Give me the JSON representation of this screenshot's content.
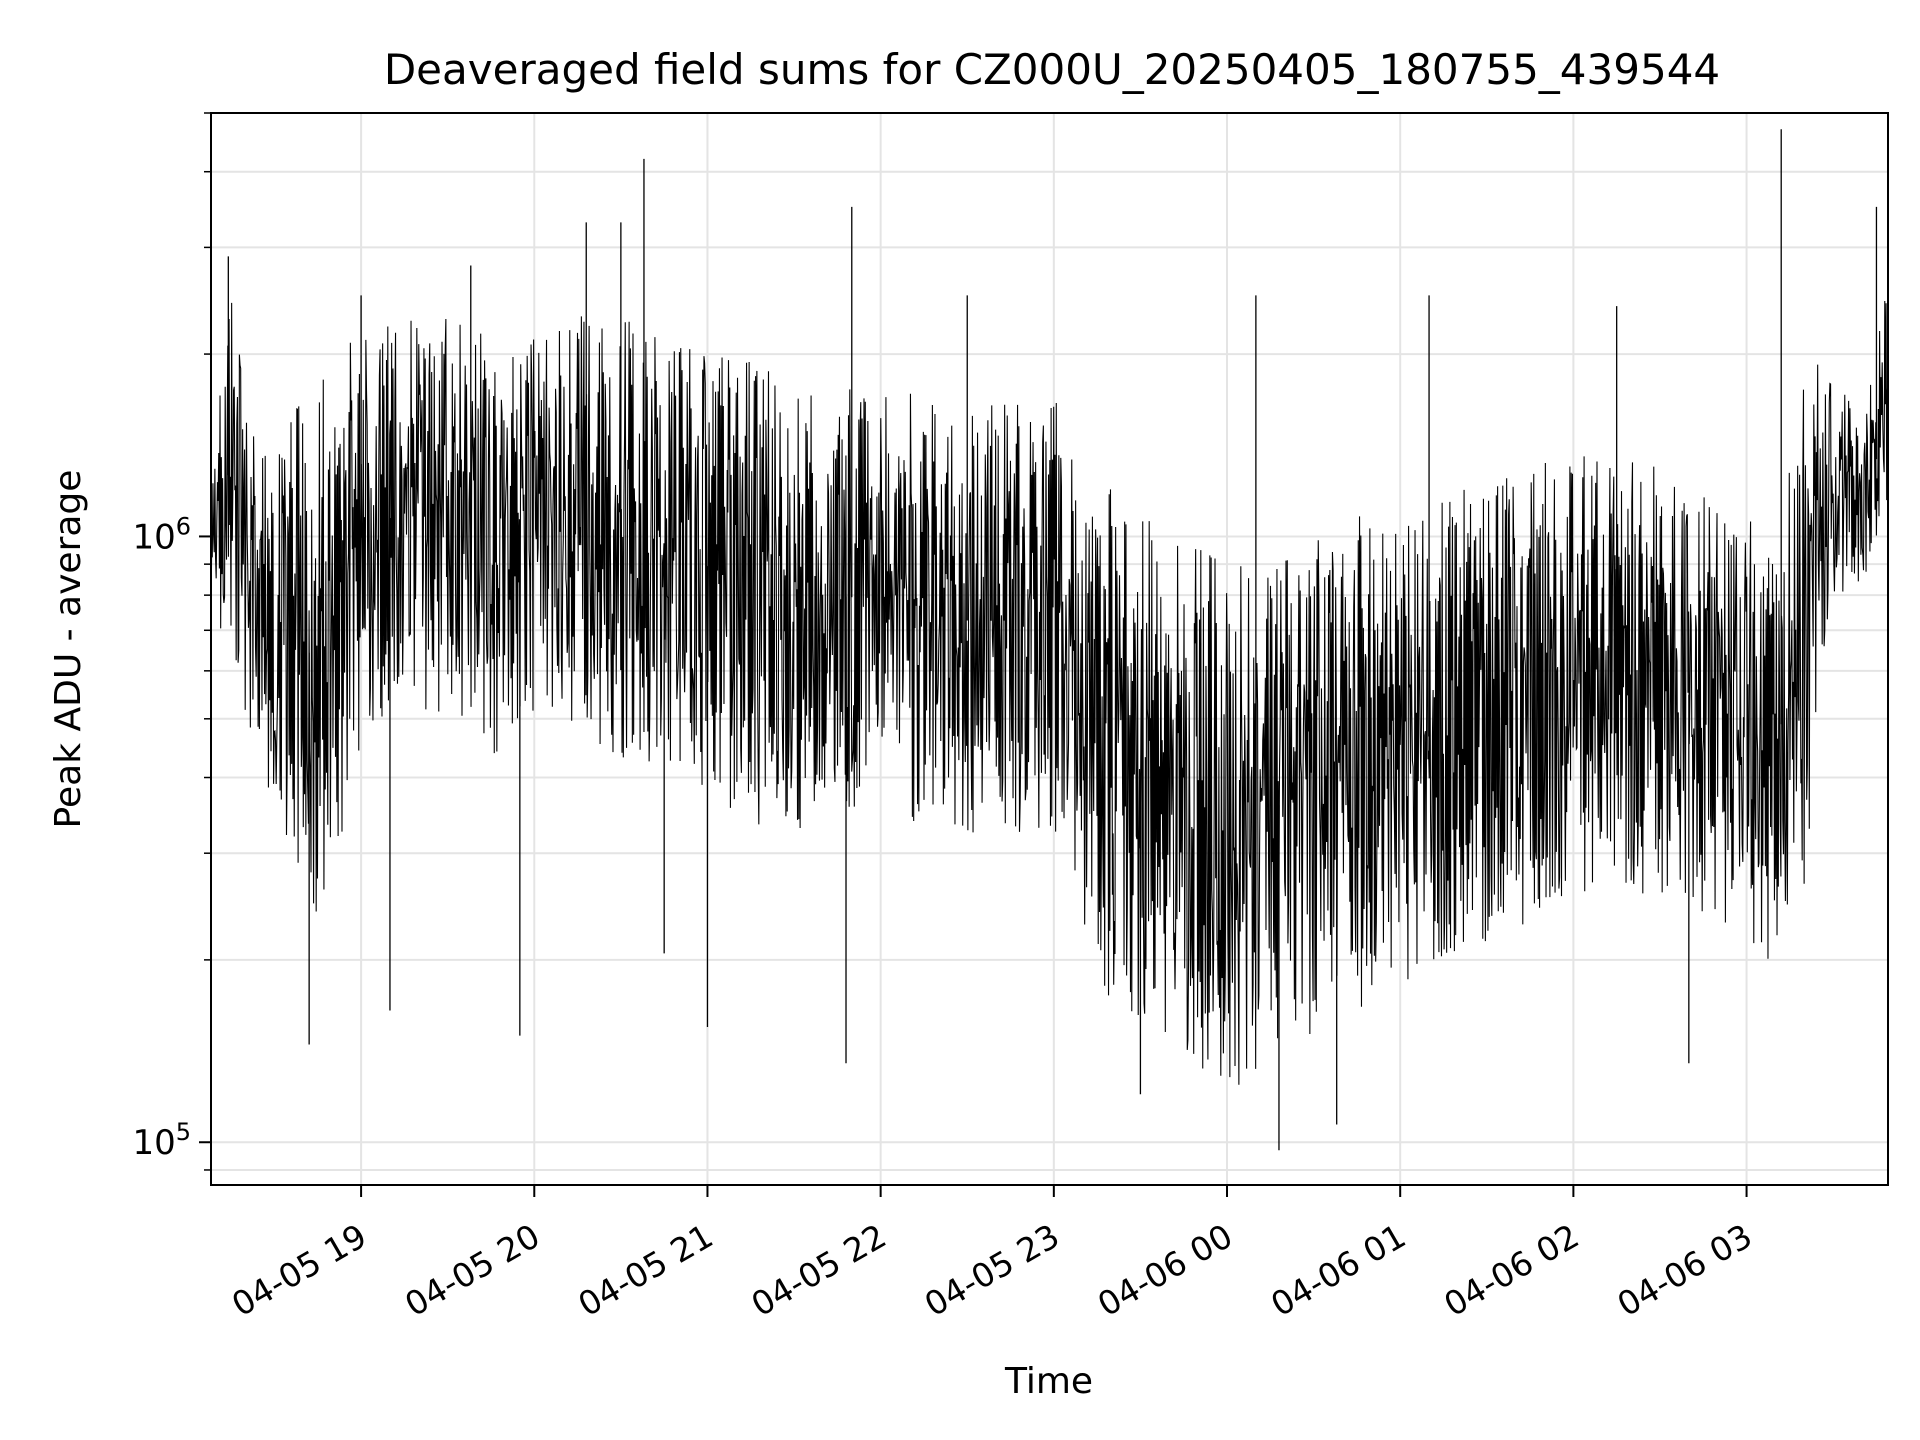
{
  "chart_data": {
    "type": "line",
    "title": "Deaveraged field sums for CZ000U_20250405_180755_439544",
    "xlabel": "Time",
    "ylabel": "Peak ADU - average",
    "yscale": "log",
    "ylim": [
      85000,
      5000000
    ],
    "xlim": [
      "2025-04-05 18:08",
      "2025-04-06 03:49"
    ],
    "grid": true,
    "line_color": "#000000",
    "x_ticks": [
      {
        "t": "2025-04-05 19:00",
        "label": "04-05 19"
      },
      {
        "t": "2025-04-05 20:00",
        "label": "04-05 20"
      },
      {
        "t": "2025-04-05 21:00",
        "label": "04-05 21"
      },
      {
        "t": "2025-04-05 22:00",
        "label": "04-05 22"
      },
      {
        "t": "2025-04-05 23:00",
        "label": "04-05 23"
      },
      {
        "t": "2025-04-06 00:00",
        "label": "04-06 00"
      },
      {
        "t": "2025-04-06 01:00",
        "label": "04-06 01"
      },
      {
        "t": "2025-04-06 02:00",
        "label": "04-06 02"
      },
      {
        "t": "2025-04-06 03:00",
        "label": "04-06 03"
      }
    ],
    "y_ticks": [
      {
        "value": 100000,
        "base": "10",
        "exp": "5"
      },
      {
        "value": 1000000,
        "base": "10",
        "exp": "6"
      }
    ],
    "series": [
      {
        "x": [
          "2025-04-05 18:08",
          "2025-04-05 18:15",
          "2025-04-05 18:20",
          "2025-04-05 18:25",
          "2025-04-05 18:30",
          "2025-04-05 18:35",
          "2025-04-05 18:40",
          "2025-04-05 18:45",
          "2025-04-05 18:50",
          "2025-04-05 18:55",
          "2025-04-05 19:00",
          "2025-04-05 19:10",
          "2025-04-05 19:20",
          "2025-04-05 19:30",
          "2025-04-05 19:40",
          "2025-04-05 19:50",
          "2025-04-05 20:00",
          "2025-04-05 20:10",
          "2025-04-05 20:20",
          "2025-04-05 20:30",
          "2025-04-05 20:40",
          "2025-04-05 20:50",
          "2025-04-05 21:00",
          "2025-04-05 21:10",
          "2025-04-05 21:20",
          "2025-04-05 21:30",
          "2025-04-05 21:40",
          "2025-04-05 21:50",
          "2025-04-05 22:00",
          "2025-04-05 22:10",
          "2025-04-05 22:20",
          "2025-04-05 22:30",
          "2025-04-05 22:40",
          "2025-04-05 22:50",
          "2025-04-05 23:00",
          "2025-04-05 23:10",
          "2025-04-05 23:20",
          "2025-04-05 23:30",
          "2025-04-05 23:40",
          "2025-04-05 23:50",
          "2025-04-06 00:00",
          "2025-04-06 00:10",
          "2025-04-06 00:20",
          "2025-04-06 00:30",
          "2025-04-06 00:40",
          "2025-04-06 00:50",
          "2025-04-06 01:00",
          "2025-04-06 01:10",
          "2025-04-06 01:20",
          "2025-04-06 01:30",
          "2025-04-06 01:40",
          "2025-04-06 01:50",
          "2025-04-06 02:00",
          "2025-04-06 02:10",
          "2025-04-06 02:20",
          "2025-04-06 02:30",
          "2025-04-06 02:40",
          "2025-04-06 02:50",
          "2025-04-06 03:00",
          "2025-04-06 03:05",
          "2025-04-06 03:10",
          "2025-04-06 03:15",
          "2025-04-06 03:20",
          "2025-04-06 03:25",
          "2025-04-06 03:30",
          "2025-04-06 03:35",
          "2025-04-06 03:40",
          "2025-04-06 03:45",
          "2025-04-06 03:49"
        ],
        "y_low": [
          600000,
          650000,
          500000,
          380000,
          350000,
          300000,
          250000,
          220000,
          280000,
          350000,
          450000,
          500000,
          520000,
          500000,
          450000,
          420000,
          500000,
          480000,
          450000,
          430000,
          420000,
          400000,
          380000,
          350000,
          330000,
          320000,
          340000,
          350000,
          360000,
          340000,
          330000,
          320000,
          330000,
          320000,
          310000,
          200000,
          170000,
          150000,
          140000,
          130000,
          120000,
          130000,
          140000,
          150000,
          160000,
          170000,
          180000,
          190000,
          200000,
          210000,
          220000,
          230000,
          240000,
          250000,
          260000,
          250000,
          240000,
          230000,
          210000,
          200000,
          200000,
          210000,
          220000,
          600000,
          700000,
          800000,
          850000,
          900000,
          1000000
        ],
        "y_high": [
          1200000,
          2800000,
          1600000,
          1400000,
          1500000,
          1600000,
          1700000,
          1800000,
          2000000,
          2100000,
          2200000,
          2300000,
          2400000,
          2300000,
          2200000,
          2100000,
          2200000,
          2300000,
          2400000,
          2300000,
          2200000,
          2100000,
          2100000,
          2000000,
          2000000,
          1900000,
          1900000,
          1800000,
          1800000,
          1750000,
          1700000,
          1650000,
          1650000,
          1700000,
          1700000,
          1300000,
          1200000,
          1100000,
          1000000,
          1000000,
          950000,
          900000,
          950000,
          1000000,
          1050000,
          1100000,
          1100000,
          1150000,
          1200000,
          1250000,
          1300000,
          1350000,
          1400000,
          1400000,
          1350000,
          1300000,
          1250000,
          1200000,
          1100000,
          1000000,
          1100000,
          1300000,
          1800000,
          2000000,
          1900000,
          1700000,
          1600000,
          2000000,
          3000000
        ],
        "spikes": [
          {
            "t": "2025-04-05 18:14",
            "y": 2900000
          },
          {
            "t": "2025-04-05 18:42",
            "y": 145000
          },
          {
            "t": "2025-04-05 19:00",
            "y": 2500000
          },
          {
            "t": "2025-04-05 19:10",
            "y": 165000
          },
          {
            "t": "2025-04-05 19:38",
            "y": 2800000
          },
          {
            "t": "2025-04-05 19:55",
            "y": 150000
          },
          {
            "t": "2025-04-05 20:18",
            "y": 3300000
          },
          {
            "t": "2025-04-05 20:30",
            "y": 3300000
          },
          {
            "t": "2025-04-05 20:38",
            "y": 4200000
          },
          {
            "t": "2025-04-05 20:45",
            "y": 205000
          },
          {
            "t": "2025-04-05 21:00",
            "y": 155000
          },
          {
            "t": "2025-04-05 21:50",
            "y": 3500000
          },
          {
            "t": "2025-04-05 21:48",
            "y": 135000
          },
          {
            "t": "2025-04-05 22:30",
            "y": 2500000
          },
          {
            "t": "2025-04-05 23:30",
            "y": 120000
          },
          {
            "t": "2025-04-06 00:10",
            "y": 2500000
          },
          {
            "t": "2025-04-06 00:18",
            "y": 97000
          },
          {
            "t": "2025-04-06 00:38",
            "y": 107000
          },
          {
            "t": "2025-04-06 01:10",
            "y": 2500000
          },
          {
            "t": "2025-04-06 02:15",
            "y": 2400000
          },
          {
            "t": "2025-04-06 02:40",
            "y": 135000
          },
          {
            "t": "2025-04-06 03:12",
            "y": 4700000
          },
          {
            "t": "2025-04-06 03:45",
            "y": 3500000
          },
          {
            "t": "2025-04-06 03:49",
            "y": 3700000
          }
        ]
      }
    ]
  }
}
